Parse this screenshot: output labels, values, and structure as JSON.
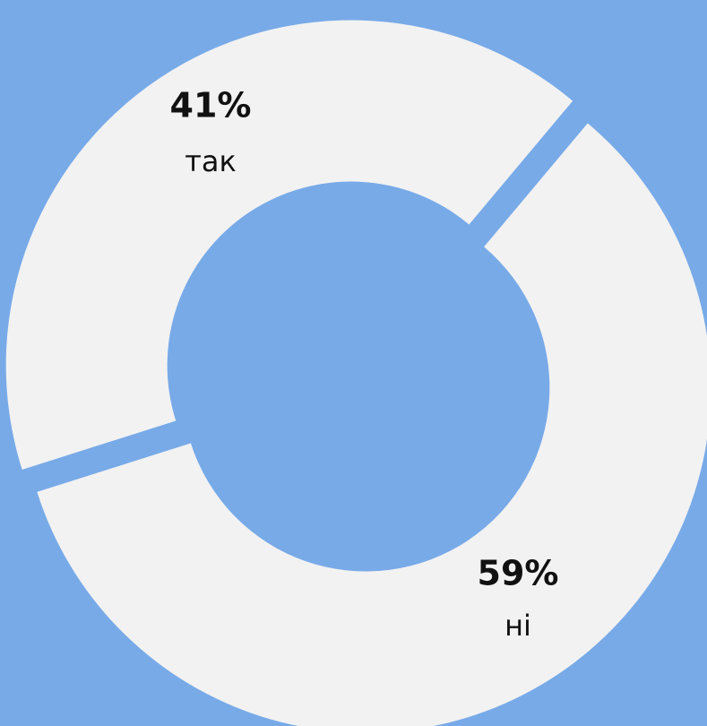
{
  "chart_data": {
    "type": "donut",
    "categories": [
      "так",
      "ні"
    ],
    "values": [
      41,
      59
    ],
    "value_labels": [
      "41%",
      "59%"
    ],
    "color": "#f2f2f2"
  }
}
